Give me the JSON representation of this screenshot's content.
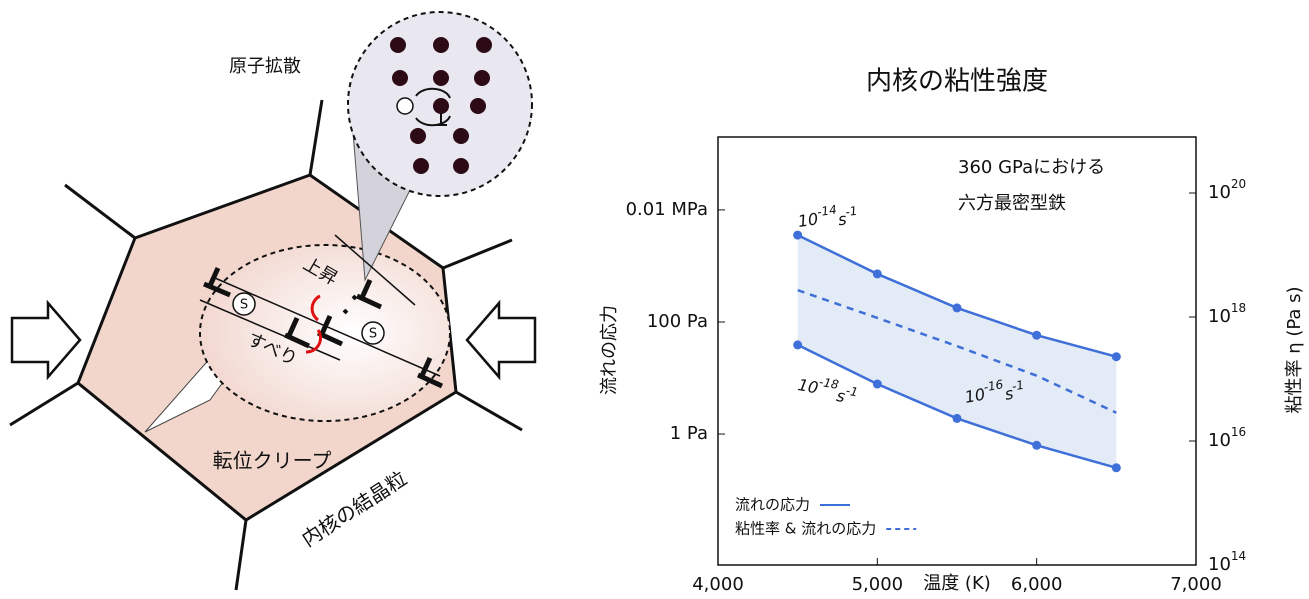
{
  "chart_data": {
    "type": "line",
    "title": "内核の粘性強度",
    "xlabel": "温度 (K)",
    "ylabel": "流れの応力",
    "y2label": "粘性率 η (Pa s)",
    "annotation": [
      "360 GPaにおける",
      "六方最密型鉄"
    ],
    "log_y": true,
    "xlim": [
      4000,
      7000
    ],
    "xticks": [
      {
        "value": 4000,
        "label": "4,000"
      },
      {
        "value": 5000,
        "label": "5,000"
      },
      {
        "value": 6000,
        "label": "6,000"
      },
      {
        "value": 7000,
        "label": "7,000"
      }
    ],
    "ylim": [
      0.0046,
      200000
    ],
    "yticks": [
      {
        "value": 1,
        "label": "1 Pa"
      },
      {
        "value": 100,
        "label": "100 Pa"
      },
      {
        "value": 10000,
        "label": "0.01 MPa"
      }
    ],
    "y2lim": [
      100000000000000.0,
      8e+20
    ],
    "y2ticks": [
      {
        "value": 100000000000000.0,
        "label": "10",
        "exponent": "14"
      },
      {
        "value": 1e+16,
        "label": "10",
        "exponent": "16"
      },
      {
        "value": 1e+18,
        "label": "10",
        "exponent": "18"
      },
      {
        "value": 1e+20,
        "label": "10",
        "exponent": "20"
      }
    ],
    "band_color": "#e3ebf6",
    "series": [
      {
        "label": {
          "base": "10",
          "exp": "-14",
          "unit": "s",
          "unit_exp": "-1"
        },
        "color": "#3f6fd8",
        "style": "solid",
        "markers": true,
        "x": [
          4500,
          5000,
          5500,
          6000,
          6500
        ],
        "values": [
          3550,
          720,
          178,
          58,
          24
        ]
      },
      {
        "label": {
          "base": "10",
          "exp": "-18",
          "unit": "s",
          "unit_exp": "-1"
        },
        "color": "#3f6fd8",
        "style": "solid",
        "markers": true,
        "x": [
          4500,
          5000,
          5500,
          6000,
          6500
        ],
        "values": [
          39,
          7.8,
          1.9,
          0.63,
          0.25
        ]
      },
      {
        "label": {
          "base": "10",
          "exp": "-16",
          "unit": "s",
          "unit_exp": "-1"
        },
        "color": "#3f6fd8",
        "style": "dashed",
        "markers": false,
        "x": [
          4500,
          5000,
          5500,
          6000,
          6500
        ],
        "values": [
          370,
          118,
          37,
          11,
          2.4
        ]
      }
    ],
    "legend": [
      {
        "name": "流れの応力",
        "style": "solid"
      },
      {
        "name": "粘性率 & 流れの応力",
        "style": "dashed"
      }
    ]
  },
  "diagram": {
    "atomic_diffusion": "原子拡散",
    "climb": "上昇",
    "slip": "すべり",
    "dislocation_creep": "転位クリープ",
    "grain": "内核の結晶粒",
    "s_marks": [
      "S",
      "S"
    ]
  }
}
